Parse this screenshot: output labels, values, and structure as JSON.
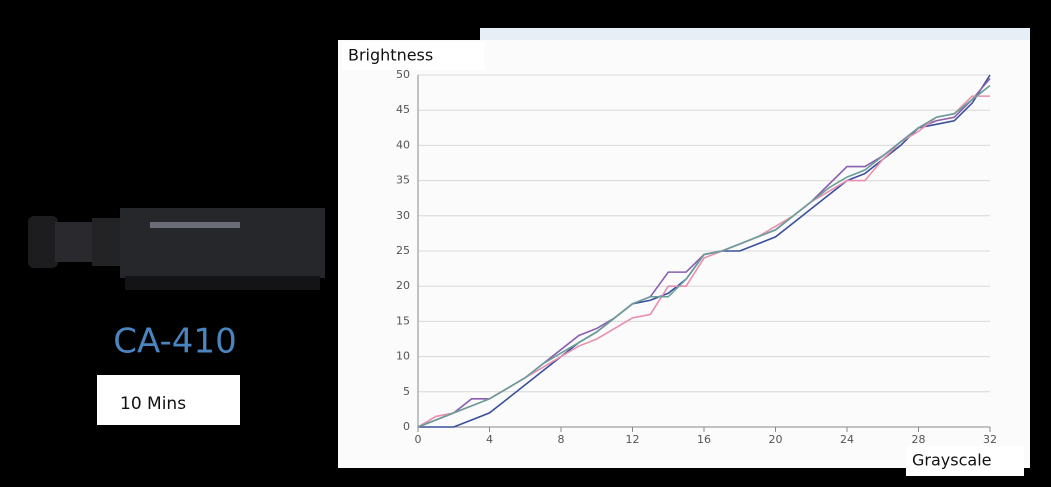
{
  "product_label": "CA-410",
  "duration_label": "10 Mins",
  "chart_data": {
    "type": "line",
    "y_label": "Brightness",
    "x_label": "Grayscale",
    "x": [
      0,
      1,
      2,
      3,
      4,
      5,
      6,
      7,
      8,
      9,
      10,
      11,
      12,
      13,
      14,
      15,
      16,
      17,
      18,
      19,
      20,
      21,
      22,
      23,
      24,
      25,
      26,
      27,
      28,
      29,
      30,
      31,
      32
    ],
    "xlim": [
      0,
      32
    ],
    "xticks": [
      0,
      4,
      8,
      12,
      16,
      20,
      24,
      28,
      32
    ],
    "ylim": [
      0,
      50
    ],
    "yticks": [
      0,
      5,
      10,
      15,
      20,
      25,
      30,
      35,
      40,
      45,
      50
    ],
    "grid": true,
    "series": [
      {
        "color": "#3a4f9e",
        "values": [
          0,
          0,
          0,
          1,
          2,
          4,
          6,
          8,
          10,
          12,
          13.5,
          15.5,
          17.5,
          18,
          19,
          21,
          24.5,
          25,
          25,
          26,
          27,
          29,
          31,
          33,
          35,
          36,
          38,
          40,
          42.5,
          43,
          43.5,
          46,
          50
        ]
      },
      {
        "color": "#8a5fb0",
        "values": [
          0,
          1,
          2,
          4,
          4,
          5.5,
          7,
          9,
          11,
          13,
          14,
          15.5,
          17.5,
          18.5,
          22,
          22,
          24.5,
          25,
          26,
          27,
          28,
          30,
          32,
          34.5,
          37,
          37,
          38.5,
          40.5,
          42.5,
          43.5,
          44,
          46.5,
          49.5
        ]
      },
      {
        "color": "#ea8fae",
        "values": [
          0,
          1.5,
          2,
          3,
          4,
          5.5,
          7,
          8.5,
          10,
          11.5,
          12.5,
          14,
          15.5,
          16,
          20,
          20,
          24,
          25,
          26,
          27,
          28.5,
          30,
          32,
          33.5,
          35,
          35,
          38,
          40.5,
          42,
          44,
          44.5,
          47,
          47
        ]
      },
      {
        "color": "#6a9e98",
        "values": [
          0,
          1,
          2,
          3,
          4,
          5.5,
          7,
          9,
          10.5,
          12,
          13.5,
          15.5,
          17.5,
          18.5,
          18.5,
          21,
          24.5,
          25,
          26,
          27,
          28,
          30,
          32,
          34,
          35.5,
          36.5,
          38.5,
          40.5,
          42.5,
          44,
          44.5,
          46.5,
          48.5
        ]
      }
    ]
  }
}
